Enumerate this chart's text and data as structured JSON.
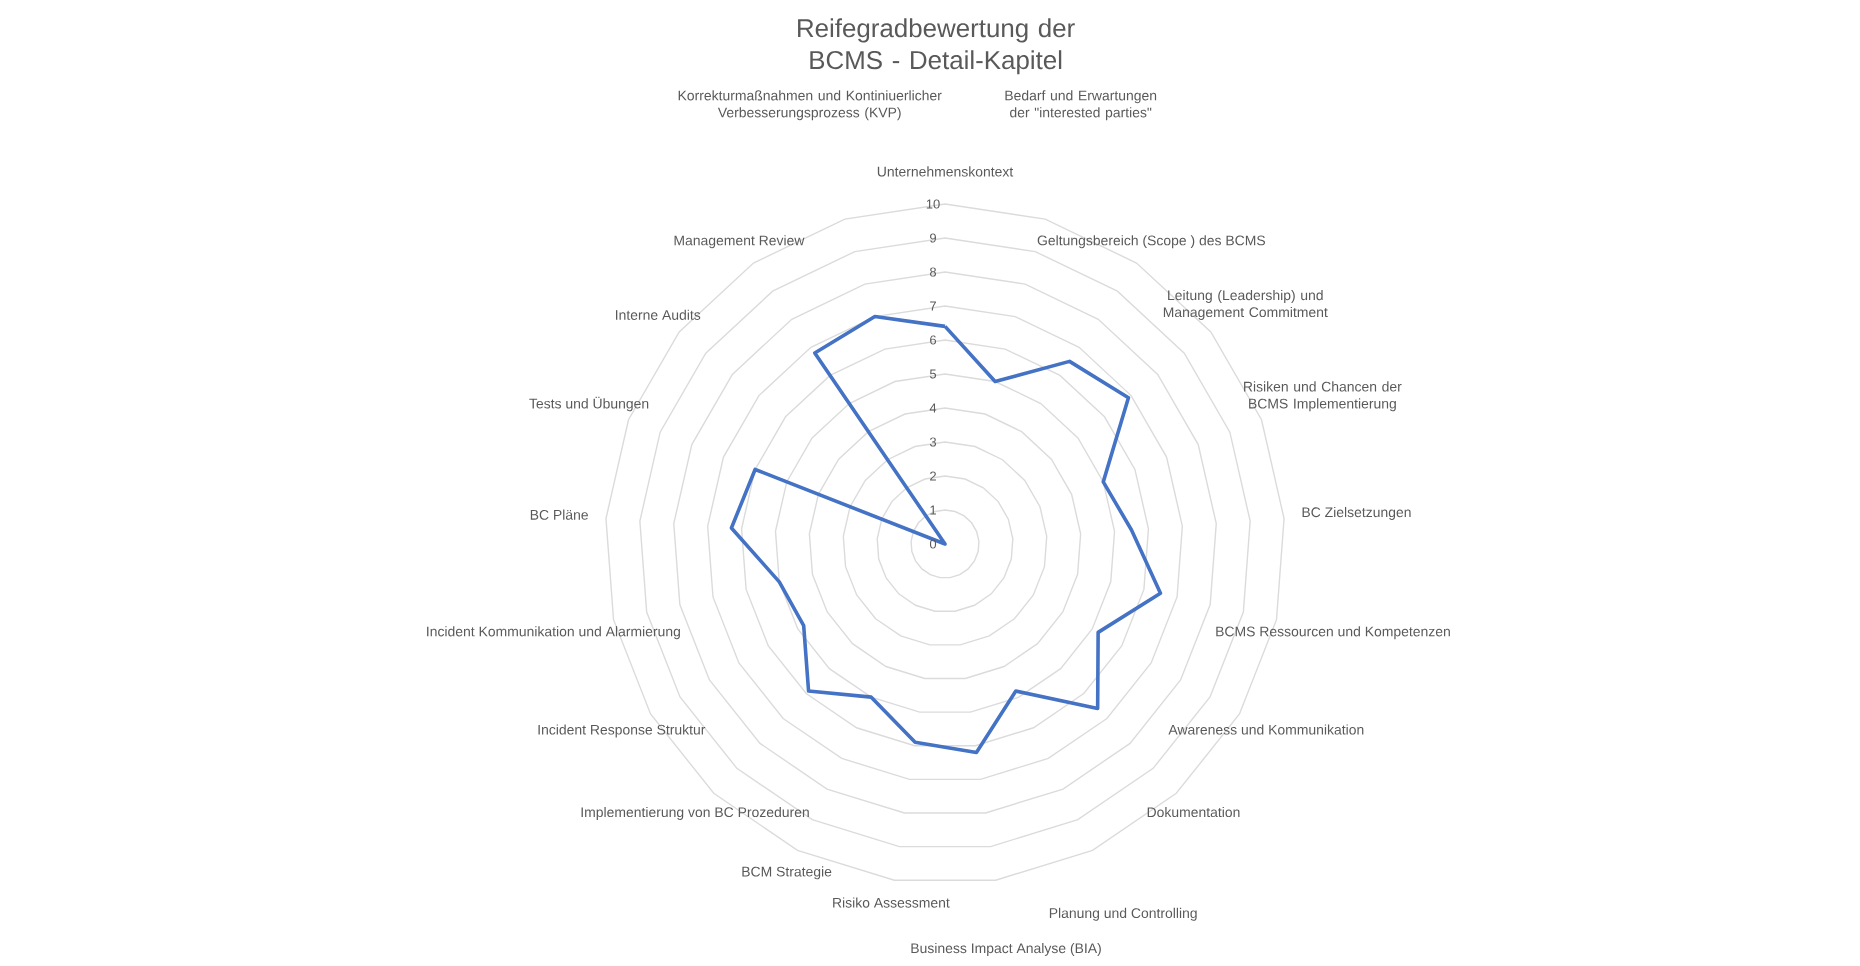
{
  "chart_data": {
    "type": "radar",
    "title": "Reifegradbewertung der BCMS - Detail-Kapitel",
    "categories": [
      "Unternehmenskontext",
      "Bedarf und Erwartungen der \"interested parties\"",
      "Geltungsbereich (Scope ) des BCMS",
      "Leitung (Leadership) und Management Commitment",
      "Risiken und Chancen der BCMS Implementierung",
      "BC Zielsetzungen",
      "BCMS Ressourcen und Kompetenzen",
      "Awareness und Kommunikation",
      "Dokumentation",
      "Planung und Controlling",
      "Business Impact Analyse (BIA)",
      "Risiko Assessment",
      "BCM Strategie",
      "Implementierung von BC Prozeduren",
      "Incident Response Struktur",
      "Incident Kommunikation und Alarmierung",
      "BC Pläne",
      "Tests und Übungen",
      "Interne Audits",
      "Management Review",
      "Korrekturmaßnahmen und Kontiniuerlicher Verbesserungsprozess (KVP)"
    ],
    "series": [
      {
        "color": "#4472c4",
        "values": [
          6.4,
          5.0,
          6.5,
          6.9,
          5.0,
          5.5,
          6.5,
          5.2,
          6.6,
          4.8,
          6.2,
          5.9,
          5.0,
          5.9,
          4.8,
          5.0,
          6.3,
          6.0,
          0,
          6.8,
          7.0
        ]
      }
    ],
    "ylim": [
      0,
      10
    ],
    "yticks": [
      0,
      1,
      2,
      3,
      4,
      5,
      6,
      7,
      8,
      9,
      10
    ],
    "grid": true
  }
}
